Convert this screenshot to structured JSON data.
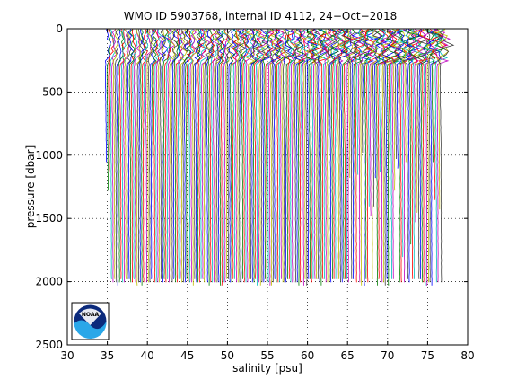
{
  "chart_data": {
    "type": "line",
    "title": "WMO ID 5903768, internal ID 4112, 24−Oct−2018",
    "xlabel": "salinity [psu]",
    "ylabel": "pressure [dbar]",
    "xlim": [
      30,
      80
    ],
    "ylim": [
      0,
      2500
    ],
    "y_reversed": true,
    "x_ticks": [
      30,
      35,
      40,
      45,
      50,
      55,
      60,
      65,
      70,
      75,
      80
    ],
    "y_ticks": [
      0,
      500,
      1000,
      1500,
      2000,
      2500
    ],
    "grid": true,
    "legend": "none",
    "profile_offset_step": 0.2,
    "profile_count": 210,
    "base_profile": {
      "pressure": [
        5,
        50,
        100,
        150,
        200,
        250,
        300,
        400,
        500,
        700,
        1000,
        1500,
        2000
      ],
      "salinity": [
        34.9,
        35.0,
        35.15,
        35.12,
        35.05,
        34.88,
        34.78,
        34.76,
        34.78,
        34.83,
        34.88,
        34.9,
        34.92
      ]
    },
    "colors": [
      "#0000ff",
      "#008000",
      "#ff0000",
      "#00bfbf",
      "#bf00bf",
      "#bfbf00",
      "#404040"
    ]
  },
  "logo": {
    "text": "NOAA",
    "colors": [
      "#0b2a7c",
      "#2aa7e8",
      "#ffffff"
    ]
  }
}
